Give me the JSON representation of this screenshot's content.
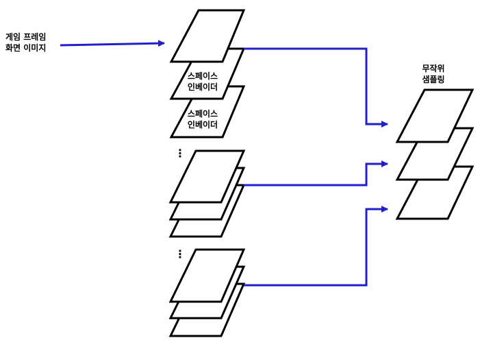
{
  "input": {
    "line1": "게임 프레임",
    "line2": "화면 이미지"
  },
  "stack1": {
    "frame2_line1": "스페이스",
    "frame2_line2": "인베이더",
    "frame3_line1": "스페이스",
    "frame3_line2": "인베이더"
  },
  "ellipsis": "⋮",
  "output": {
    "line1": "무작위",
    "line2": "샘플링"
  },
  "colors": {
    "arrow": "#1f1fcf",
    "frame_stroke": "#000000",
    "frame_fill": "#ffffff"
  }
}
